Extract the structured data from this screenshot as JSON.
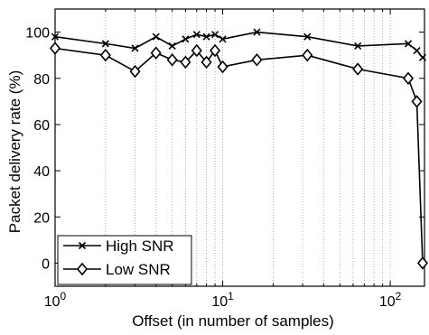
{
  "chart_data": {
    "type": "line",
    "xlabel": "Offset (in number of samples)",
    "ylabel": "Packet delivery rate (%)",
    "x_scale": "log",
    "xlim": [
      1,
      160
    ],
    "ylim": [
      -10,
      110
    ],
    "xticks": [
      {
        "value": 1,
        "base": "10",
        "exp": "0"
      },
      {
        "value": 10,
        "base": "10",
        "exp": "1"
      },
      {
        "value": 100,
        "base": "10",
        "exp": "2"
      }
    ],
    "yticks": [
      0,
      20,
      40,
      60,
      80,
      100
    ],
    "grid": "vertical minor dotted",
    "legend_position": "bottom-left",
    "series": [
      {
        "name": "High SNR",
        "marker": "x",
        "x": [
          1,
          2,
          3,
          4,
          5,
          6,
          7,
          8,
          9,
          10,
          16,
          32,
          64,
          128,
          144,
          156
        ],
        "y": [
          98,
          95,
          93,
          98,
          94,
          97,
          99,
          98,
          99,
          97,
          100,
          98,
          94,
          95,
          92,
          89
        ]
      },
      {
        "name": "Low SNR",
        "marker": "diamond",
        "x": [
          1,
          2,
          3,
          4,
          5,
          6,
          7,
          8,
          9,
          10,
          16,
          32,
          64,
          128,
          144,
          156
        ],
        "y": [
          93,
          90,
          83,
          91,
          88,
          87,
          92,
          87,
          92,
          85,
          88,
          90,
          84,
          80,
          70,
          0
        ]
      }
    ]
  }
}
